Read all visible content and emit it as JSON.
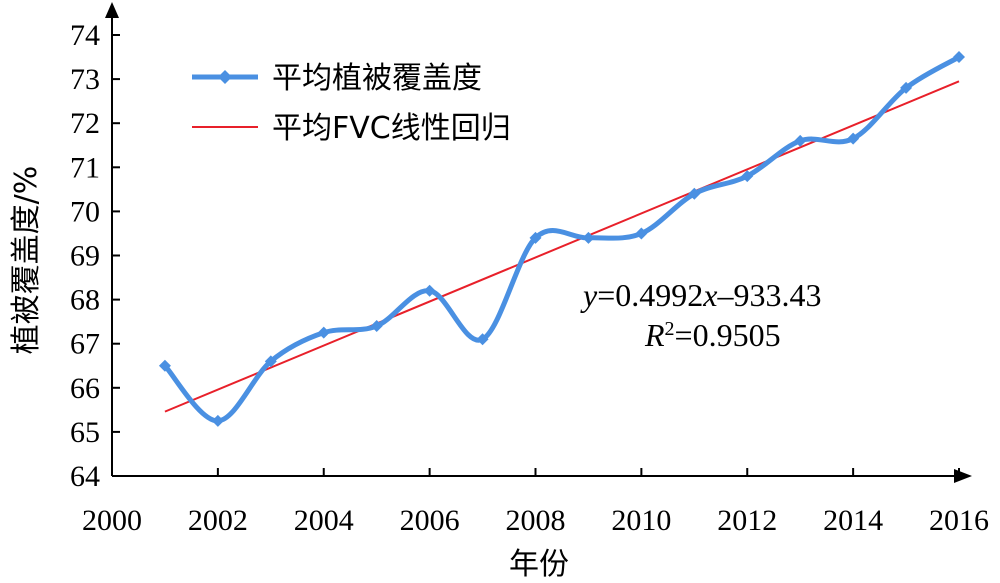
{
  "chart_data": {
    "type": "line",
    "xlabel": "年份",
    "ylabel": "植被覆盖度/%",
    "xlim": [
      2000,
      2016
    ],
    "ylim": [
      64,
      74
    ],
    "xticks": [
      "2000",
      "2002",
      "2004",
      "2006",
      "2008",
      "2010",
      "2012",
      "2014",
      "2016"
    ],
    "yticks": [
      "64",
      "65",
      "66",
      "67",
      "68",
      "69",
      "70",
      "71",
      "72",
      "73",
      "74"
    ],
    "legend_position": "top-left",
    "grid": false,
    "series": [
      {
        "name": "平均植被覆盖度",
        "color": "#4a90e2",
        "marker": "diamond",
        "smooth": true,
        "x": [
          2001,
          2002,
          2003,
          2004,
          2005,
          2006,
          2007,
          2008,
          2009,
          2010,
          2011,
          2012,
          2013,
          2014,
          2015,
          2016
        ],
        "y": [
          66.5,
          65.25,
          66.6,
          67.25,
          67.4,
          68.2,
          67.1,
          69.4,
          69.4,
          69.5,
          70.4,
          70.8,
          71.6,
          71.65,
          72.8,
          73.5
        ]
      },
      {
        "name": "平均FVC线性回归",
        "color": "#e8202a",
        "type": "line",
        "x": [
          2001,
          2016
        ],
        "y": [
          65.46,
          72.95
        ]
      }
    ],
    "annotations": {
      "y_label": "y",
      "equation_part1": "=0.4992",
      "x_label": "x",
      "equation_part2": "–933.43",
      "r_label": "R",
      "r_sup": "2",
      "r_value": "=0.9505"
    }
  }
}
